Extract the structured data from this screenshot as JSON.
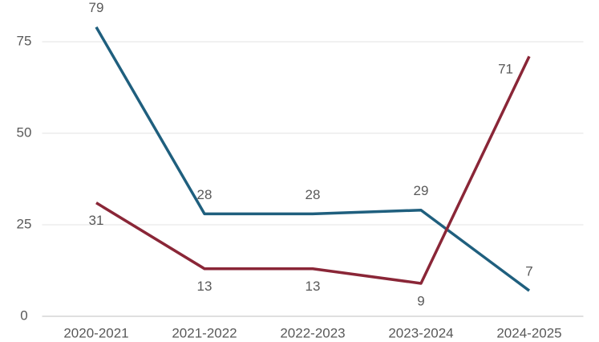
{
  "chart_data": {
    "type": "line",
    "categories": [
      "2020-2021",
      "2021-2022",
      "2022-2023",
      "2023-2024",
      "2024-2025"
    ],
    "series": [
      {
        "color": "#1f5f7e",
        "values": [
          79,
          28,
          28,
          29,
          7
        ]
      },
      {
        "color": "#8a2637",
        "values": [
          31,
          13,
          13,
          9,
          71
        ]
      }
    ],
    "ylim": [
      0,
      85
    ],
    "yticks": [
      0,
      25,
      50,
      75
    ],
    "grid": true
  }
}
